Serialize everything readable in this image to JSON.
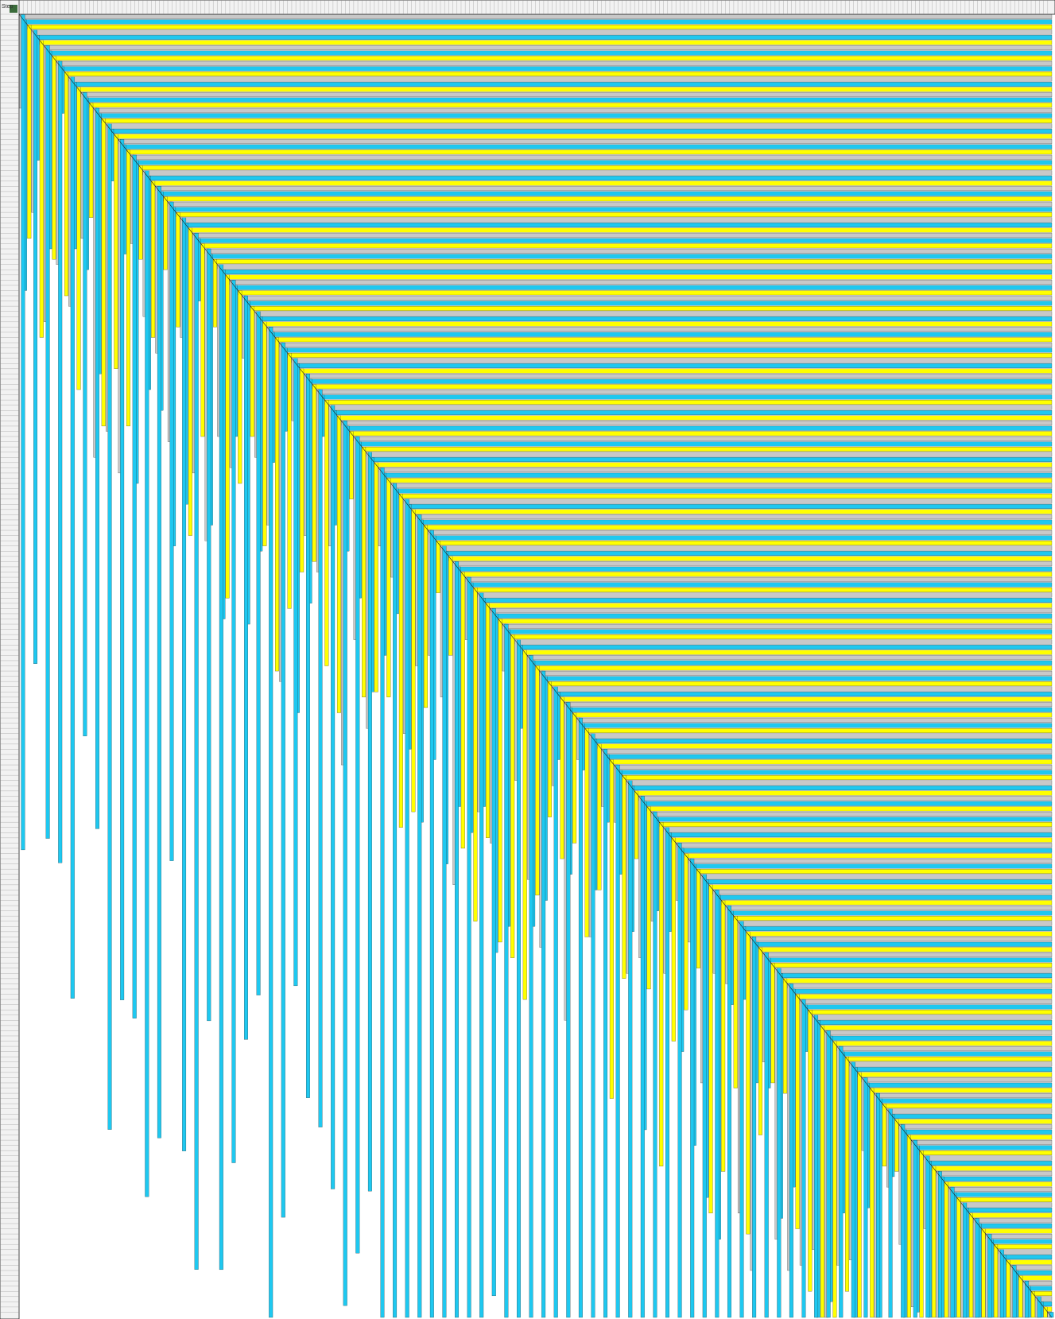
{
  "corner_label": "Step",
  "row_count": 250,
  "column_count": 250,
  "colors": {
    "yellow": "#ffff00",
    "cyan": "#1ec8f0",
    "gray": "#c8c8c8",
    "grid": "#8a8a8a",
    "border": "#1a1a1a",
    "header_fill": "#f2f2f2",
    "corner_fill": "#3a6b3a",
    "background": "#ffffff"
  },
  "color_cycle": [
    "gray",
    "cyan",
    "yellow"
  ]
}
